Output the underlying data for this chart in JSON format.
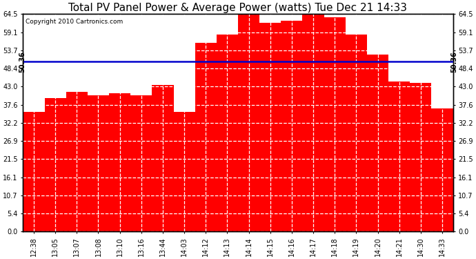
{
  "title": "Total PV Panel Power & Average Power (watts) Tue Dec 21 14:33",
  "copyright": "Copyright 2010 Cartronics.com",
  "bar_color": "#FF0000",
  "avg_line_color": "#0000CC",
  "avg_value": 50.36,
  "avg_label": "50.36",
  "categories": [
    "12:38",
    "13:05",
    "13:07",
    "13:08",
    "13:10",
    "13:16",
    "13:44",
    "14:03",
    "14:12",
    "14:13",
    "14:14",
    "14:15",
    "14:16",
    "14:17",
    "14:18",
    "14:19",
    "14:20",
    "14:21",
    "14:30",
    "14:33"
  ],
  "values": [
    35.5,
    39.5,
    41.5,
    40.5,
    41.0,
    40.5,
    43.5,
    35.5,
    56.0,
    58.5,
    65.5,
    62.0,
    62.5,
    65.5,
    63.5,
    58.5,
    52.5,
    44.5,
    44.0,
    36.5
  ],
  "ylim": [
    0.0,
    64.5
  ],
  "yticks": [
    0.0,
    5.4,
    10.7,
    16.1,
    21.5,
    26.9,
    32.2,
    37.6,
    43.0,
    48.4,
    53.7,
    59.1,
    64.5
  ],
  "bg_color": "#FFFFFF",
  "title_fontsize": 11,
  "tick_fontsize": 7,
  "copyright_fontsize": 6.5
}
